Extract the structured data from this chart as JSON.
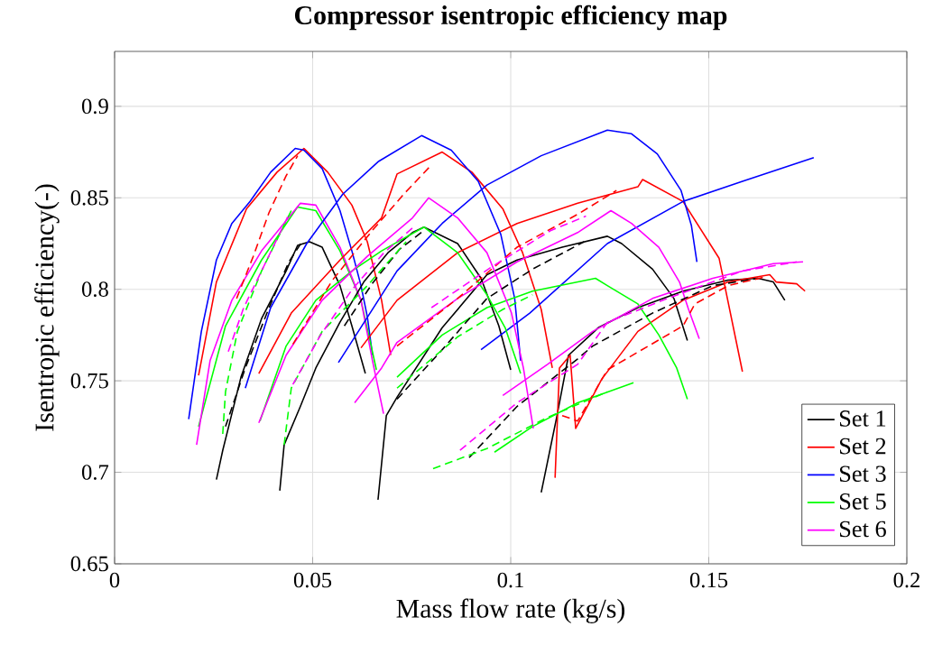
{
  "chart_data": {
    "type": "line",
    "title": "Compressor isentropic efficiency map",
    "xlabel": "Mass flow rate (kg/s)",
    "ylabel": "Isentropic efficiency(-)",
    "xlim": [
      0,
      0.2
    ],
    "ylim": [
      0.65,
      0.93
    ],
    "xticks": [
      0,
      0.05,
      0.1,
      0.15,
      0.2
    ],
    "yticks": [
      0.65,
      0.7,
      0.75,
      0.8,
      0.85,
      0.9
    ],
    "grid": true,
    "legend": "bottom right",
    "marker": "none",
    "series": [
      {
        "name": "Set 1",
        "color": "#000000",
        "line_style": "solid",
        "x": [
          0.0257,
          0.0273,
          0.0319,
          0.0371,
          0.0433,
          0.0462,
          0.0492,
          0.0524,
          0.0569,
          0.0599,
          0.0633
        ],
        "values": [
          0.696,
          0.712,
          0.752,
          0.784,
          0.81,
          0.824,
          0.826,
          0.823,
          0.802,
          0.78,
          0.754
        ]
      },
      {
        "name": "Set 2",
        "color": "#ff0000",
        "line_style": "solid",
        "x": [
          0.0212,
          0.0257,
          0.0333,
          0.041,
          0.0478,
          0.0538,
          0.0599,
          0.0638,
          0.0674,
          0.0697
        ],
        "values": [
          0.753,
          0.804,
          0.844,
          0.864,
          0.877,
          0.864,
          0.846,
          0.826,
          0.794,
          0.764
        ]
      },
      {
        "name": "Set 3",
        "color": "#0000ff",
        "line_style": "solid",
        "x": [
          0.0187,
          0.0219,
          0.0257,
          0.0296,
          0.0342,
          0.0394,
          0.0456,
          0.0478,
          0.0524,
          0.0569,
          0.0599,
          0.0622,
          0.0638,
          0.0651
        ],
        "values": [
          0.729,
          0.777,
          0.816,
          0.836,
          0.848,
          0.864,
          0.877,
          0.876,
          0.866,
          0.843,
          0.821,
          0.802,
          0.785,
          0.764
        ]
      },
      {
        "name": "Set 5",
        "color": "#00ff00",
        "line_style": "solid",
        "x": [
          0.0212,
          0.028,
          0.0371,
          0.0462,
          0.0508,
          0.0569,
          0.0622,
          0.0661
        ],
        "values": [
          0.725,
          0.78,
          0.816,
          0.845,
          0.843,
          0.821,
          0.794,
          0.756
        ]
      },
      {
        "name": "Set 6",
        "color": "#ff00ff",
        "line_style": "solid",
        "x": [
          0.0207,
          0.0241,
          0.0296,
          0.0371,
          0.0469,
          0.0508,
          0.0569,
          0.0622,
          0.0651,
          0.0679
        ],
        "values": [
          0.715,
          0.761,
          0.794,
          0.821,
          0.847,
          0.846,
          0.823,
          0.794,
          0.761,
          0.732
        ]
      },
      {
        "color": "#000000",
        "line_style": "solid",
        "x": [
          0.0417,
          0.0428,
          0.0469,
          0.0508,
          0.0569,
          0.0629,
          0.069,
          0.0752,
          0.0781,
          0.0866,
          0.0925,
          0.097,
          0.1
        ],
        "values": [
          0.69,
          0.715,
          0.736,
          0.757,
          0.782,
          0.804,
          0.82,
          0.831,
          0.834,
          0.825,
          0.806,
          0.78,
          0.756
        ]
      },
      {
        "color": "#000000",
        "line_style": "solid",
        "x": [
          0.0665,
          0.0686,
          0.0713,
          0.0827,
          0.094,
          0.1016,
          0.113,
          0.1244,
          0.128,
          0.1358,
          0.1412,
          0.1446
        ],
        "values": [
          0.685,
          0.731,
          0.741,
          0.779,
          0.808,
          0.816,
          0.823,
          0.829,
          0.825,
          0.811,
          0.795,
          0.772
        ]
      },
      {
        "color": "#000000",
        "line_style": "solid",
        "x": [
          0.1077,
          0.1116,
          0.1146,
          0.1221,
          0.1321,
          0.1435,
          0.1549,
          0.1624,
          0.1663,
          0.1692
        ],
        "values": [
          0.689,
          0.73,
          0.764,
          0.779,
          0.79,
          0.799,
          0.805,
          0.806,
          0.804,
          0.794
        ]
      },
      {
        "color": "#ff0000",
        "line_style": "solid",
        "x": [
          0.0364,
          0.0446,
          0.0569,
          0.0674,
          0.0713,
          0.0827,
          0.0902,
          0.098,
          0.103,
          0.1077,
          0.1105
        ],
        "values": [
          0.754,
          0.787,
          0.816,
          0.839,
          0.863,
          0.875,
          0.864,
          0.844,
          0.82,
          0.789,
          0.757
        ]
      },
      {
        "color": "#ff0000",
        "line_style": "solid",
        "x": [
          0.0622,
          0.0713,
          0.0866,
          0.1016,
          0.1169,
          0.1321,
          0.1333,
          0.1435,
          0.1526,
          0.1585
        ],
        "values": [
          0.768,
          0.794,
          0.82,
          0.836,
          0.847,
          0.856,
          0.86,
          0.848,
          0.817,
          0.755
        ]
      },
      {
        "color": "#ff0000",
        "line_style": "solid",
        "x": [
          0.1112,
          0.1123,
          0.115,
          0.1164,
          0.123,
          0.1321,
          0.1435,
          0.1549,
          0.1654,
          0.167,
          0.1722,
          0.1743
        ],
        "values": [
          0.697,
          0.757,
          0.764,
          0.724,
          0.751,
          0.777,
          0.794,
          0.804,
          0.808,
          0.804,
          0.803,
          0.799
        ]
      },
      {
        "color": "#0000ff",
        "line_style": "solid",
        "x": [
          0.033,
          0.0394,
          0.0485,
          0.0576,
          0.0667,
          0.0775,
          0.085,
          0.0918,
          0.0975,
          0.101,
          0.1025
        ],
        "values": [
          0.746,
          0.79,
          0.825,
          0.852,
          0.87,
          0.884,
          0.876,
          0.859,
          0.83,
          0.795,
          0.761
        ]
      },
      {
        "color": "#0000ff",
        "line_style": "solid",
        "x": [
          0.0565,
          0.0713,
          0.0827,
          0.094,
          0.1077,
          0.1244,
          0.1305,
          0.137,
          0.143,
          0.1456,
          0.147
        ],
        "values": [
          0.76,
          0.81,
          0.836,
          0.857,
          0.873,
          0.887,
          0.885,
          0.874,
          0.854,
          0.835,
          0.815
        ]
      },
      {
        "color": "#0000ff",
        "line_style": "solid",
        "x": [
          0.0925,
          0.1048,
          0.1244,
          0.1435,
          0.1585,
          0.1765
        ],
        "values": [
          0.767,
          0.787,
          0.825,
          0.848,
          0.859,
          0.872
        ]
      },
      {
        "color": "#00ff00",
        "line_style": "solid",
        "x": [
          0.0367,
          0.0433,
          0.0508,
          0.0599,
          0.0674,
          0.0781,
          0.0866,
          0.094,
          0.0986,
          0.1025
        ],
        "values": [
          0.728,
          0.769,
          0.794,
          0.81,
          0.821,
          0.834,
          0.82,
          0.797,
          0.779,
          0.754
        ]
      },
      {
        "color": "#00ff00",
        "line_style": "solid",
        "x": [
          0.0713,
          0.0827,
          0.094,
          0.1055,
          0.1214,
          0.1244,
          0.1321,
          0.1374,
          0.1419,
          0.1446
        ],
        "values": [
          0.752,
          0.775,
          0.79,
          0.799,
          0.806,
          0.802,
          0.792,
          0.775,
          0.757,
          0.74
        ]
      },
      {
        "color": "#00ff00",
        "line_style": "solid",
        "x": [
          0.0959,
          0.1055,
          0.1169,
          0.131
        ],
        "values": [
          0.711,
          0.725,
          0.738,
          0.749
        ]
      },
      {
        "color": "#ff00ff",
        "line_style": "solid",
        "x": [
          0.0364,
          0.0433,
          0.0524,
          0.0638,
          0.0752,
          0.0793,
          0.0866,
          0.094,
          0.1002,
          0.1032,
          0.1057
        ],
        "values": [
          0.727,
          0.764,
          0.794,
          0.818,
          0.839,
          0.85,
          0.839,
          0.82,
          0.787,
          0.757,
          0.724
        ]
      },
      {
        "color": "#ff00ff",
        "line_style": "solid",
        "x": [
          0.0606,
          0.0674,
          0.0713,
          0.0866,
          0.1016,
          0.1169,
          0.1253,
          0.1305,
          0.1374,
          0.1426,
          0.1449,
          0.1476
        ],
        "values": [
          0.738,
          0.757,
          0.771,
          0.795,
          0.815,
          0.831,
          0.843,
          0.836,
          0.823,
          0.804,
          0.789,
          0.773
        ]
      },
      {
        "color": "#ff00ff",
        "line_style": "solid",
        "x": [
          0.098,
          0.1093,
          0.1207,
          0.1358,
          0.151,
          0.1663,
          0.1738
        ],
        "values": [
          0.742,
          0.759,
          0.777,
          0.795,
          0.806,
          0.814,
          0.815
        ]
      },
      {
        "color": "#000000",
        "line_style": "dashed",
        "x": [
          0.028,
          0.033,
          0.039,
          0.044,
          0.047
        ],
        "values": [
          0.725,
          0.757,
          0.79,
          0.815,
          0.825
        ]
      },
      {
        "color": "#000000",
        "line_style": "dashed",
        "x": [
          0.058,
          0.065,
          0.072,
          0.078
        ],
        "values": [
          0.78,
          0.803,
          0.822,
          0.832
        ]
      },
      {
        "color": "#000000",
        "line_style": "dashed",
        "x": [
          0.0713,
          0.0827,
          0.094,
          0.1055,
          0.1185
        ],
        "values": [
          0.74,
          0.767,
          0.795,
          0.811,
          0.826
        ]
      },
      {
        "color": "#000000",
        "line_style": "dashed",
        "x": [
          0.0895,
          0.1016,
          0.1169,
          0.1207,
          0.1358,
          0.151,
          0.1624
        ],
        "values": [
          0.708,
          0.736,
          0.762,
          0.769,
          0.787,
          0.802,
          0.806
        ]
      },
      {
        "color": "#ff0000",
        "line_style": "dashed",
        "x": [
          0.0308,
          0.035,
          0.039,
          0.0433,
          0.0462
        ],
        "values": [
          0.795,
          0.818,
          0.842,
          0.862,
          0.873
        ]
      },
      {
        "color": "#ff0000",
        "line_style": "dashed",
        "x": [
          0.045,
          0.055,
          0.065,
          0.073,
          0.08
        ],
        "values": [
          0.77,
          0.805,
          0.832,
          0.852,
          0.868
        ]
      },
      {
        "color": "#ff0000",
        "line_style": "dashed",
        "x": [
          0.0713,
          0.0866,
          0.1016,
          0.1169,
          0.1267
        ],
        "values": [
          0.769,
          0.795,
          0.823,
          0.841,
          0.854
        ]
      },
      {
        "color": "#ff0000",
        "line_style": "dashed",
        "x": [
          0.113,
          0.1169,
          0.1244,
          0.1435,
          0.1465,
          0.1549,
          0.1647
        ],
        "values": [
          0.731,
          0.728,
          0.756,
          0.78,
          0.792,
          0.802,
          0.807
        ]
      },
      {
        "color": "#00ff00",
        "line_style": "dashed",
        "x": [
          0.0273,
          0.028,
          0.031,
          0.0371,
          0.0446
        ],
        "values": [
          0.721,
          0.744,
          0.777,
          0.81,
          0.843
        ]
      },
      {
        "color": "#00ff00",
        "line_style": "dashed",
        "x": [
          0.0428,
          0.0446,
          0.0524,
          0.0638,
          0.0736
        ],
        "values": [
          0.715,
          0.746,
          0.777,
          0.802,
          0.826
        ]
      },
      {
        "color": "#00ff00",
        "line_style": "dashed",
        "x": [
          0.0713,
          0.0866,
          0.098,
          0.1055
        ],
        "values": [
          0.746,
          0.774,
          0.789,
          0.797
        ]
      },
      {
        "color": "#00ff00",
        "line_style": "dashed",
        "x": [
          0.0804,
          0.094,
          0.1093,
          0.1244
        ],
        "values": [
          0.702,
          0.713,
          0.73,
          0.744
        ]
      },
      {
        "color": "#ff00ff",
        "line_style": "dashed",
        "x": [
          0.0287,
          0.0326,
          0.0371,
          0.044
        ],
        "values": [
          0.766,
          0.79,
          0.81,
          0.841
        ]
      },
      {
        "color": "#ff00ff",
        "line_style": "dashed",
        "x": [
          0.045,
          0.052,
          0.06,
          0.068,
          0.076
        ],
        "values": [
          0.748,
          0.775,
          0.8,
          0.82,
          0.835
        ]
      },
      {
        "color": "#ff00ff",
        "line_style": "dashed",
        "x": [
          0.08,
          0.095,
          0.11,
          0.119
        ],
        "values": [
          0.79,
          0.812,
          0.832,
          0.84
        ]
      },
      {
        "color": "#ff00ff",
        "line_style": "dashed",
        "x": [
          0.0872,
          0.1016,
          0.1169,
          0.1244,
          0.1396,
          0.1585,
          0.1722
        ],
        "values": [
          0.712,
          0.738,
          0.759,
          0.782,
          0.795,
          0.81,
          0.815
        ]
      }
    ]
  }
}
